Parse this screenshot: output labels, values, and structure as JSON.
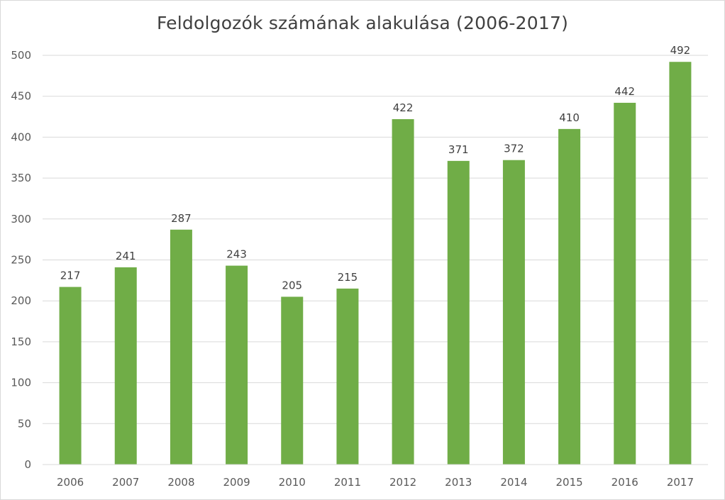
{
  "chart_data": {
    "type": "bar",
    "title": "Feldolgozók számának alakulása (2006-2017)",
    "xlabel": "",
    "ylabel": "",
    "categories": [
      "2006",
      "2007",
      "2008",
      "2009",
      "2010",
      "2011",
      "2012",
      "2013",
      "2014",
      "2015",
      "2016",
      "2017"
    ],
    "values": [
      217,
      241,
      287,
      243,
      205,
      215,
      422,
      371,
      372,
      410,
      442,
      492
    ],
    "ylim": [
      0,
      500
    ],
    "yticks": [
      0,
      50,
      100,
      150,
      200,
      250,
      300,
      350,
      400,
      450,
      500
    ],
    "grid": true,
    "legend": "none",
    "bar_color": "#70ad47",
    "grid_color": "#d9d9d9"
  }
}
